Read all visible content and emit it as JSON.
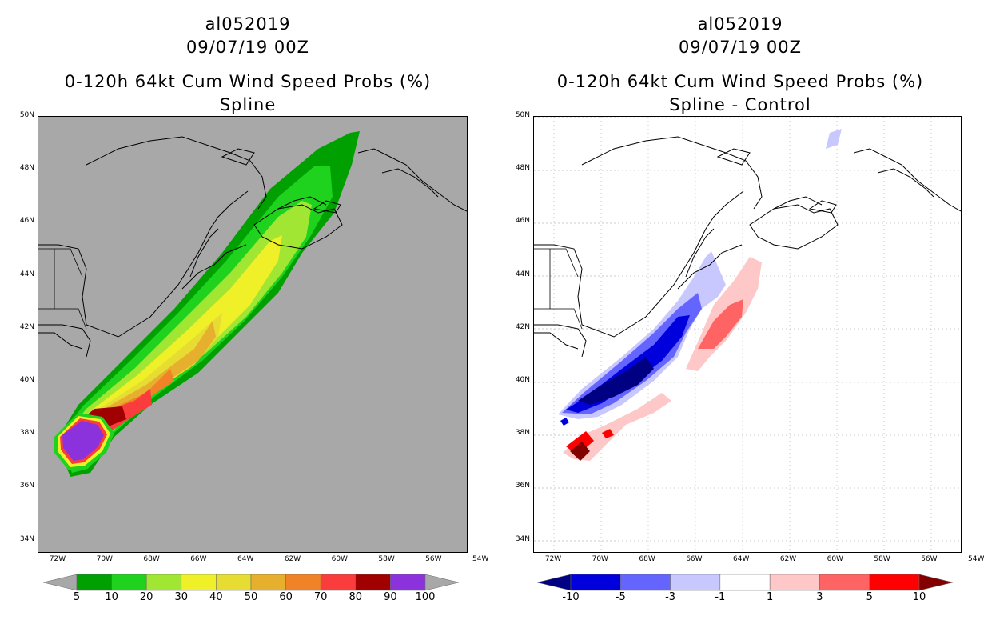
{
  "left_panel": {
    "storm_id": "al052019",
    "datetime": "09/07/19 00Z",
    "product": "0-120h 64kt Cum Wind Speed Probs (%)",
    "subtitle": "Spline",
    "background_color": "#a8a8a8"
  },
  "right_panel": {
    "storm_id": "al052019",
    "datetime": "09/07/19 00Z",
    "product": "0-120h 64kt Cum Wind Speed Probs (%)",
    "subtitle": "Spline - Control",
    "background_color": "#ffffff"
  },
  "axes": {
    "lat_labels": [
      "50N",
      "48N",
      "46N",
      "44N",
      "42N",
      "40N",
      "38N",
      "36N",
      "34N"
    ],
    "lon_labels": [
      "72W",
      "70W",
      "68W",
      "66W",
      "64W",
      "62W",
      "60W",
      "58W",
      "56W",
      "54W"
    ]
  },
  "left_colorbar": {
    "colors": [
      "#a8a8a8",
      "#00a000",
      "#1ed21e",
      "#a0e632",
      "#f0f028",
      "#e6dc32",
      "#e6af2d",
      "#f08228",
      "#fa3c3c",
      "#a00000",
      "#8c32dc",
      "#a8a8a8"
    ],
    "labels": [
      "5",
      "10",
      "20",
      "30",
      "40",
      "50",
      "60",
      "70",
      "80",
      "90",
      "100"
    ]
  },
  "right_colorbar": {
    "colors": [
      "#000082",
      "#0000dc",
      "#6464ff",
      "#c8c8ff",
      "#ffffff",
      "#ffc8c8",
      "#ff6464",
      "#ff0000",
      "#820000"
    ],
    "labels": [
      "-10",
      "-5",
      "-3",
      "-1",
      "1",
      "3",
      "5",
      "10"
    ]
  }
}
